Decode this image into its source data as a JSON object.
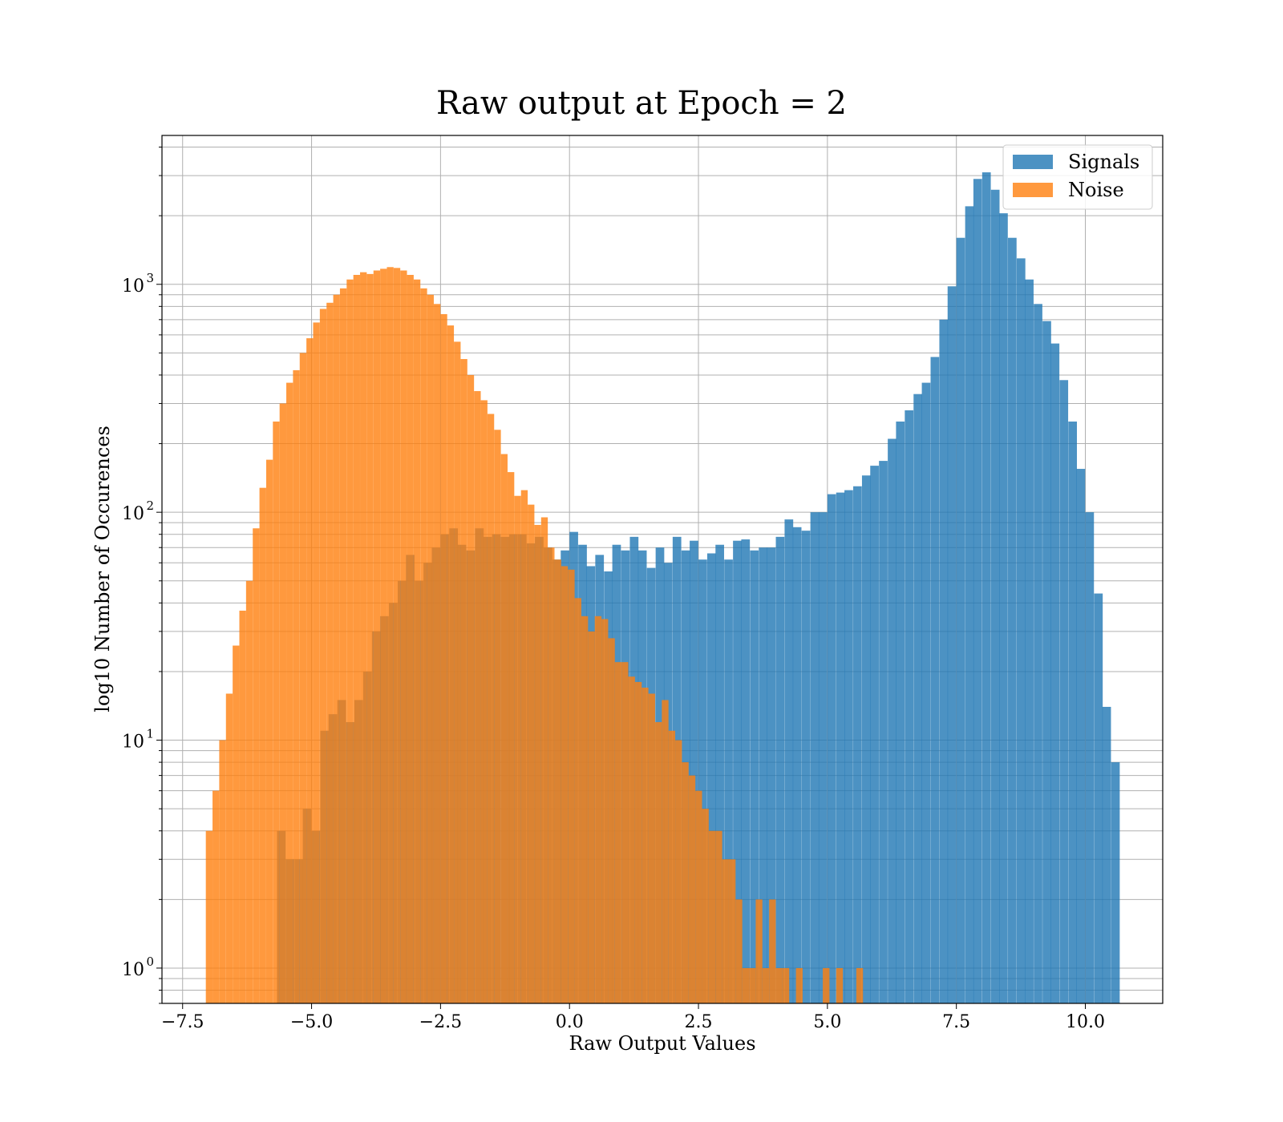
{
  "chart_data": {
    "type": "bar",
    "subtype": "histogram",
    "title": "Raw output at Epoch = 2",
    "xlabel": "Raw Output Values",
    "ylabel": "log10 Number of Occurences",
    "xlim": [
      -7.9,
      11.5
    ],
    "ylim": [
      0.7,
      4500
    ],
    "yscale": "log",
    "grid": true,
    "legend_position": "top-right",
    "x_ticks": [
      -7.5,
      -5.0,
      -2.5,
      0.0,
      2.5,
      5.0,
      7.5,
      10.0
    ],
    "x_tick_labels": [
      "−7.5",
      "−5.0",
      "−2.5",
      "0.0",
      "2.5",
      "5.0",
      "7.5",
      "10.0"
    ],
    "y_ticks": [
      {
        "value": 1,
        "base": "10",
        "exp": "0"
      },
      {
        "value": 10,
        "base": "10",
        "exp": "1"
      },
      {
        "value": 100,
        "base": "10",
        "exp": "2"
      },
      {
        "value": 1000,
        "base": "10",
        "exp": "3"
      }
    ],
    "series": [
      {
        "name": "Signals",
        "color": "#1f77b4",
        "opacity": 0.8,
        "bin_width": 0.1667,
        "bins": [
          {
            "x0": -5.67,
            "value": 4
          },
          {
            "x0": -5.5,
            "value": 3
          },
          {
            "x0": -5.33,
            "value": 3
          },
          {
            "x0": -5.17,
            "value": 5
          },
          {
            "x0": -5.0,
            "value": 4
          },
          {
            "x0": -4.83,
            "value": 11
          },
          {
            "x0": -4.67,
            "value": 13
          },
          {
            "x0": -4.5,
            "value": 15
          },
          {
            "x0": -4.33,
            "value": 12
          },
          {
            "x0": -4.17,
            "value": 15
          },
          {
            "x0": -4.0,
            "value": 20
          },
          {
            "x0": -3.83,
            "value": 30
          },
          {
            "x0": -3.67,
            "value": 35
          },
          {
            "x0": -3.5,
            "value": 40
          },
          {
            "x0": -3.33,
            "value": 50
          },
          {
            "x0": -3.17,
            "value": 65
          },
          {
            "x0": -3.0,
            "value": 50
          },
          {
            "x0": -2.83,
            "value": 60
          },
          {
            "x0": -2.67,
            "value": 70
          },
          {
            "x0": -2.5,
            "value": 80
          },
          {
            "x0": -2.33,
            "value": 85
          },
          {
            "x0": -2.17,
            "value": 72
          },
          {
            "x0": -2.0,
            "value": 68
          },
          {
            "x0": -1.83,
            "value": 85
          },
          {
            "x0": -1.67,
            "value": 78
          },
          {
            "x0": -1.5,
            "value": 80
          },
          {
            "x0": -1.33,
            "value": 78
          },
          {
            "x0": -1.17,
            "value": 80
          },
          {
            "x0": -1.0,
            "value": 80
          },
          {
            "x0": -0.83,
            "value": 73
          },
          {
            "x0": -0.67,
            "value": 78
          },
          {
            "x0": -0.5,
            "value": 70
          },
          {
            "x0": -0.33,
            "value": 62
          },
          {
            "x0": -0.17,
            "value": 68
          },
          {
            "x0": 0.0,
            "value": 82
          },
          {
            "x0": 0.17,
            "value": 72
          },
          {
            "x0": 0.33,
            "value": 58
          },
          {
            "x0": 0.5,
            "value": 65
          },
          {
            "x0": 0.67,
            "value": 55
          },
          {
            "x0": 0.83,
            "value": 72
          },
          {
            "x0": 1.0,
            "value": 68
          },
          {
            "x0": 1.17,
            "value": 78
          },
          {
            "x0": 1.33,
            "value": 68
          },
          {
            "x0": 1.5,
            "value": 57
          },
          {
            "x0": 1.67,
            "value": 70
          },
          {
            "x0": 1.83,
            "value": 60
          },
          {
            "x0": 2.0,
            "value": 78
          },
          {
            "x0": 2.17,
            "value": 68
          },
          {
            "x0": 2.33,
            "value": 75
          },
          {
            "x0": 2.5,
            "value": 62
          },
          {
            "x0": 2.67,
            "value": 66
          },
          {
            "x0": 2.83,
            "value": 72
          },
          {
            "x0": 3.0,
            "value": 62
          },
          {
            "x0": 3.17,
            "value": 75
          },
          {
            "x0": 3.33,
            "value": 76
          },
          {
            "x0": 3.5,
            "value": 68
          },
          {
            "x0": 3.67,
            "value": 70
          },
          {
            "x0": 3.83,
            "value": 70
          },
          {
            "x0": 4.0,
            "value": 78
          },
          {
            "x0": 4.17,
            "value": 93
          },
          {
            "x0": 4.33,
            "value": 86
          },
          {
            "x0": 4.5,
            "value": 83
          },
          {
            "x0": 4.67,
            "value": 100
          },
          {
            "x0": 4.83,
            "value": 100
          },
          {
            "x0": 5.0,
            "value": 120
          },
          {
            "x0": 5.17,
            "value": 122
          },
          {
            "x0": 5.33,
            "value": 125
          },
          {
            "x0": 5.5,
            "value": 130
          },
          {
            "x0": 5.67,
            "value": 145
          },
          {
            "x0": 5.83,
            "value": 160
          },
          {
            "x0": 6.0,
            "value": 168
          },
          {
            "x0": 6.17,
            "value": 210
          },
          {
            "x0": 6.33,
            "value": 250
          },
          {
            "x0": 6.5,
            "value": 280
          },
          {
            "x0": 6.67,
            "value": 330
          },
          {
            "x0": 6.83,
            "value": 370
          },
          {
            "x0": 7.0,
            "value": 480
          },
          {
            "x0": 7.17,
            "value": 700
          },
          {
            "x0": 7.33,
            "value": 980
          },
          {
            "x0": 7.5,
            "value": 1600
          },
          {
            "x0": 7.67,
            "value": 2200
          },
          {
            "x0": 7.83,
            "value": 2900
          },
          {
            "x0": 8.0,
            "value": 3100
          },
          {
            "x0": 8.17,
            "value": 2600
          },
          {
            "x0": 8.33,
            "value": 2050
          },
          {
            "x0": 8.5,
            "value": 1600
          },
          {
            "x0": 8.67,
            "value": 1300
          },
          {
            "x0": 8.83,
            "value": 1050
          },
          {
            "x0": 9.0,
            "value": 820
          },
          {
            "x0": 9.17,
            "value": 690
          },
          {
            "x0": 9.33,
            "value": 550
          },
          {
            "x0": 9.5,
            "value": 380
          },
          {
            "x0": 9.67,
            "value": 250
          },
          {
            "x0": 9.83,
            "value": 155
          },
          {
            "x0": 10.0,
            "value": 100
          },
          {
            "x0": 10.17,
            "value": 44
          },
          {
            "x0": 10.33,
            "value": 14
          },
          {
            "x0": 10.5,
            "value": 8
          }
        ]
      },
      {
        "name": "Noise",
        "color": "#ff7f0e",
        "opacity": 0.8,
        "bin_width": 0.1293,
        "bins": [
          {
            "x0": -7.05,
            "value": 4
          },
          {
            "x0": -6.92,
            "value": 6
          },
          {
            "x0": -6.79,
            "value": 10
          },
          {
            "x0": -6.66,
            "value": 16
          },
          {
            "x0": -6.53,
            "value": 26
          },
          {
            "x0": -6.4,
            "value": 37
          },
          {
            "x0": -6.27,
            "value": 50
          },
          {
            "x0": -6.14,
            "value": 85
          },
          {
            "x0": -6.01,
            "value": 128
          },
          {
            "x0": -5.88,
            "value": 170
          },
          {
            "x0": -5.75,
            "value": 250
          },
          {
            "x0": -5.62,
            "value": 300
          },
          {
            "x0": -5.49,
            "value": 370
          },
          {
            "x0": -5.36,
            "value": 420
          },
          {
            "x0": -5.23,
            "value": 500
          },
          {
            "x0": -5.1,
            "value": 580
          },
          {
            "x0": -4.97,
            "value": 680
          },
          {
            "x0": -4.84,
            "value": 780
          },
          {
            "x0": -4.71,
            "value": 830
          },
          {
            "x0": -4.58,
            "value": 900
          },
          {
            "x0": -4.45,
            "value": 960
          },
          {
            "x0": -4.32,
            "value": 1050
          },
          {
            "x0": -4.19,
            "value": 1100
          },
          {
            "x0": -4.06,
            "value": 1130
          },
          {
            "x0": -3.93,
            "value": 1110
          },
          {
            "x0": -3.8,
            "value": 1150
          },
          {
            "x0": -3.67,
            "value": 1170
          },
          {
            "x0": -3.54,
            "value": 1190
          },
          {
            "x0": -3.41,
            "value": 1180
          },
          {
            "x0": -3.28,
            "value": 1150
          },
          {
            "x0": -3.15,
            "value": 1100
          },
          {
            "x0": -3.02,
            "value": 1050
          },
          {
            "x0": -2.89,
            "value": 960
          },
          {
            "x0": -2.76,
            "value": 900
          },
          {
            "x0": -2.63,
            "value": 820
          },
          {
            "x0": -2.5,
            "value": 740
          },
          {
            "x0": -2.37,
            "value": 660
          },
          {
            "x0": -2.24,
            "value": 560
          },
          {
            "x0": -2.11,
            "value": 470
          },
          {
            "x0": -1.98,
            "value": 400
          },
          {
            "x0": -1.85,
            "value": 340
          },
          {
            "x0": -1.72,
            "value": 310
          },
          {
            "x0": -1.59,
            "value": 270
          },
          {
            "x0": -1.46,
            "value": 230
          },
          {
            "x0": -1.33,
            "value": 180
          },
          {
            "x0": -1.2,
            "value": 150
          },
          {
            "x0": -1.07,
            "value": 118
          },
          {
            "x0": -0.94,
            "value": 125
          },
          {
            "x0": -0.81,
            "value": 108
          },
          {
            "x0": -0.68,
            "value": 88
          },
          {
            "x0": -0.55,
            "value": 95
          },
          {
            "x0": -0.42,
            "value": 70
          },
          {
            "x0": -0.29,
            "value": 62
          },
          {
            "x0": -0.16,
            "value": 58
          },
          {
            "x0": -0.03,
            "value": 56
          },
          {
            "x0": 0.1,
            "value": 42
          },
          {
            "x0": 0.23,
            "value": 35
          },
          {
            "x0": 0.36,
            "value": 30
          },
          {
            "x0": 0.49,
            "value": 35
          },
          {
            "x0": 0.62,
            "value": 34
          },
          {
            "x0": 0.75,
            "value": 28
          },
          {
            "x0": 0.88,
            "value": 22
          },
          {
            "x0": 1.01,
            "value": 22
          },
          {
            "x0": 1.14,
            "value": 19
          },
          {
            "x0": 1.27,
            "value": 18
          },
          {
            "x0": 1.4,
            "value": 17
          },
          {
            "x0": 1.53,
            "value": 16
          },
          {
            "x0": 1.66,
            "value": 12
          },
          {
            "x0": 1.79,
            "value": 15
          },
          {
            "x0": 1.92,
            "value": 11
          },
          {
            "x0": 2.05,
            "value": 10
          },
          {
            "x0": 2.18,
            "value": 8
          },
          {
            "x0": 2.31,
            "value": 7
          },
          {
            "x0": 2.44,
            "value": 6
          },
          {
            "x0": 2.57,
            "value": 5
          },
          {
            "x0": 2.7,
            "value": 4
          },
          {
            "x0": 2.83,
            "value": 4
          },
          {
            "x0": 2.96,
            "value": 3
          },
          {
            "x0": 3.09,
            "value": 3
          },
          {
            "x0": 3.22,
            "value": 2
          },
          {
            "x0": 3.35,
            "value": 1
          },
          {
            "x0": 3.48,
            "value": 1
          },
          {
            "x0": 3.61,
            "value": 2
          },
          {
            "x0": 3.74,
            "value": 1
          },
          {
            "x0": 3.87,
            "value": 2
          },
          {
            "x0": 4.0,
            "value": 1
          },
          {
            "x0": 4.13,
            "value": 1
          },
          {
            "x0": 4.39,
            "value": 1
          },
          {
            "x0": 4.91,
            "value": 1
          },
          {
            "x0": 5.17,
            "value": 1
          },
          {
            "x0": 5.56,
            "value": 1
          }
        ]
      }
    ]
  }
}
